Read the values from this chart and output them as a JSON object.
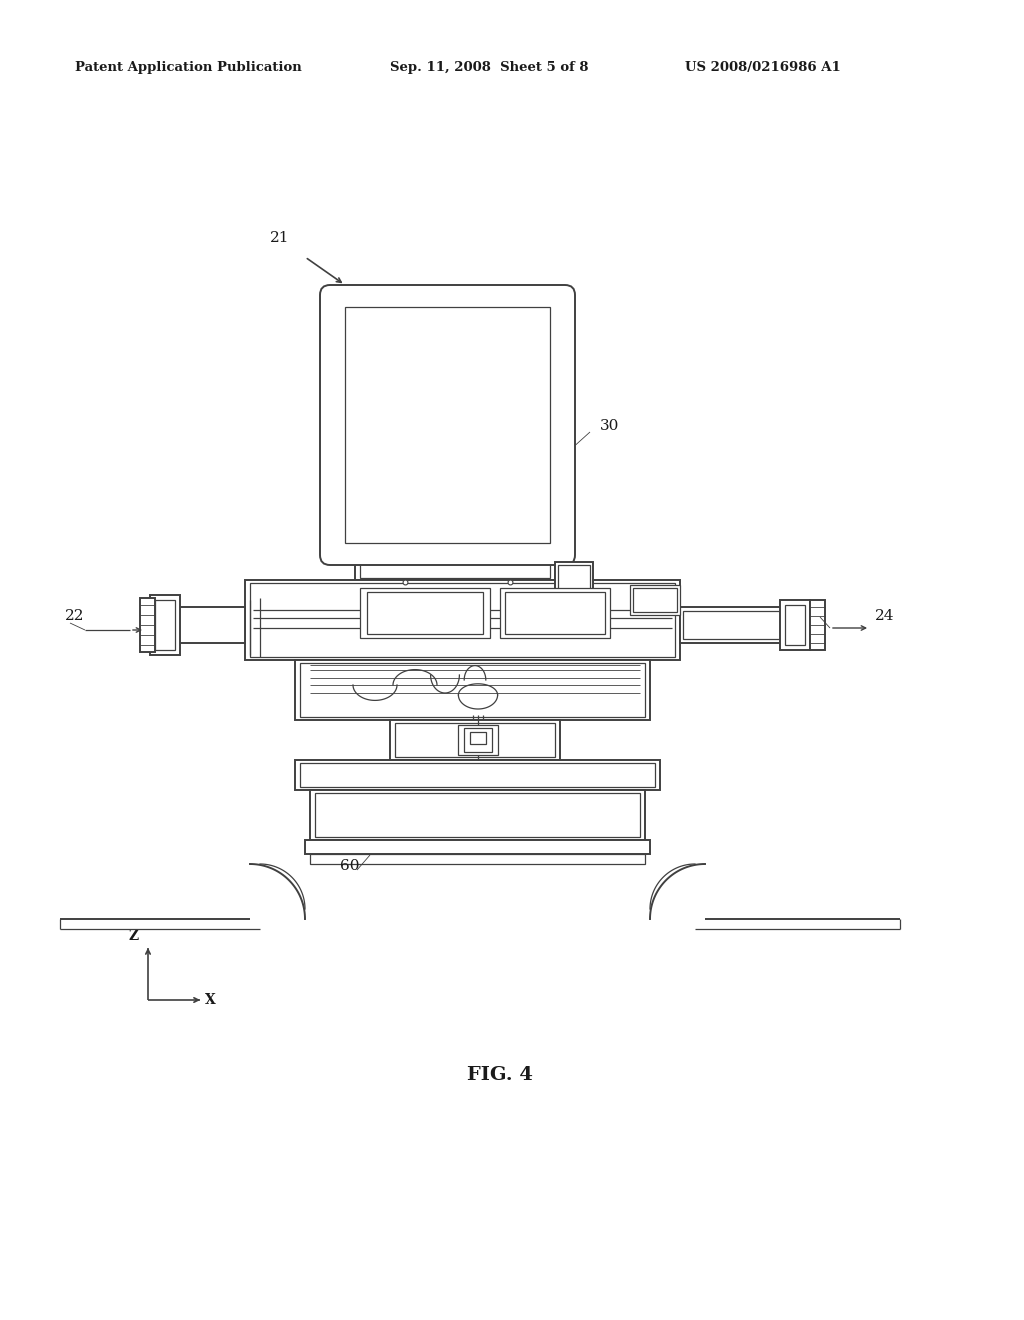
{
  "background_color": "#ffffff",
  "line_color": "#404040",
  "text_color": "#1a1a1a",
  "header_left": "Patent Application Publication",
  "header_center": "Sep. 11, 2008  Sheet 5 of 8",
  "header_right": "US 2008/0216986 A1",
  "fig_label": "FIG. 4",
  "label_21": "21",
  "label_22": "22",
  "label_24": "24",
  "label_30": "30",
  "label_60": "60"
}
